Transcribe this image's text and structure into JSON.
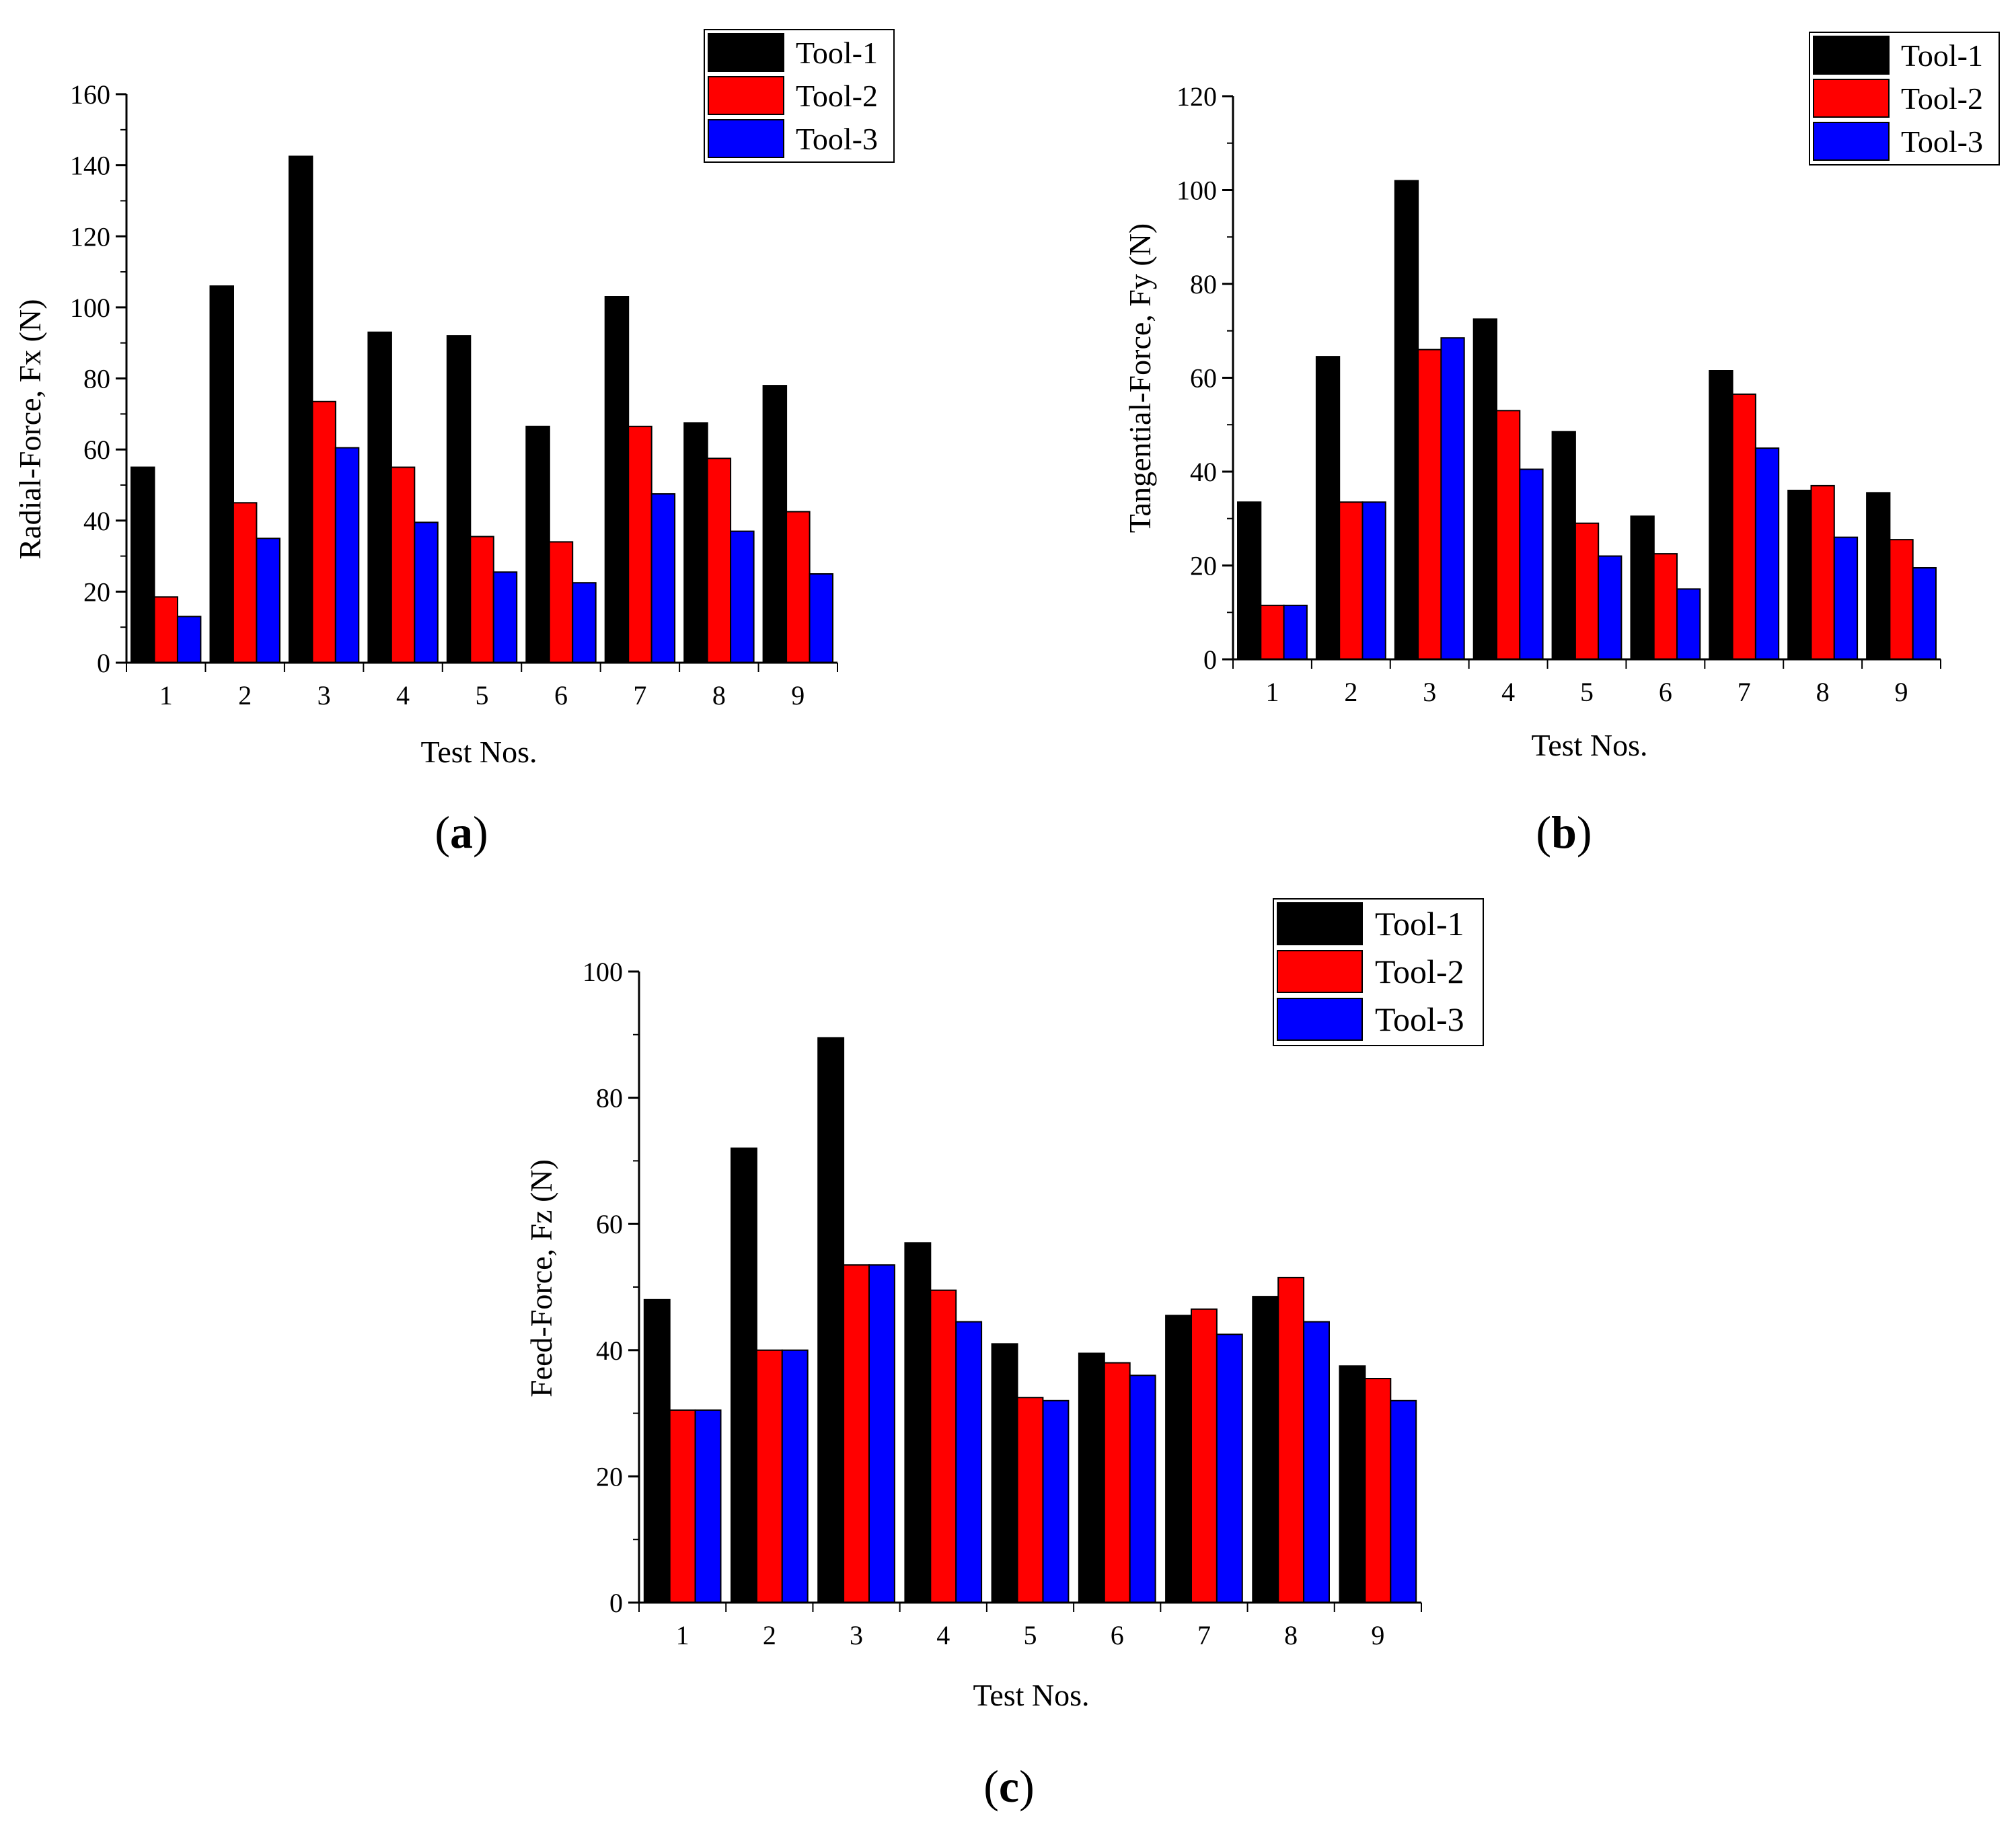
{
  "chart_data": [
    {
      "type": "bar",
      "panel": "(a)",
      "panel_letter": "a",
      "title": "",
      "xlabel": "Test Nos.",
      "ylabel": "Radial-Force, Fx (N)",
      "ylim": [
        0,
        160
      ],
      "yticks": [
        0,
        20,
        40,
        60,
        80,
        100,
        120,
        140,
        160
      ],
      "categories": [
        "1",
        "2",
        "3",
        "4",
        "5",
        "6",
        "7",
        "8",
        "9"
      ],
      "legend_position": "top-right",
      "series": [
        {
          "name": "Tool-1",
          "color": "#000000",
          "values": [
            55,
            106,
            142.5,
            93,
            92,
            66.5,
            103,
            67.5,
            78
          ]
        },
        {
          "name": "Tool-2",
          "color": "#ff0000",
          "values": [
            18.5,
            45,
            73.5,
            55,
            35.5,
            34,
            66.5,
            57.5,
            42.5
          ]
        },
        {
          "name": "Tool-3",
          "color": "#0000ff",
          "values": [
            13,
            35,
            60.5,
            39.5,
            25.5,
            22.5,
            47.5,
            37,
            25
          ]
        }
      ]
    },
    {
      "type": "bar",
      "panel": "(b)",
      "panel_letter": "b",
      "title": "",
      "xlabel": "Test Nos.",
      "ylabel": "Tangential-Force, Fy (N)",
      "ylim": [
        0,
        120
      ],
      "yticks": [
        0,
        20,
        40,
        60,
        80,
        100,
        120
      ],
      "categories": [
        "1",
        "2",
        "3",
        "4",
        "5",
        "6",
        "7",
        "8",
        "9"
      ],
      "legend_position": "top-right",
      "series": [
        {
          "name": "Tool-1",
          "color": "#000000",
          "values": [
            33.5,
            64.5,
            102,
            72.5,
            48.5,
            30.5,
            61.5,
            36,
            35.5
          ]
        },
        {
          "name": "Tool-2",
          "color": "#ff0000",
          "values": [
            11.5,
            33.5,
            66,
            53,
            29,
            22.5,
            56.5,
            37,
            25.5
          ]
        },
        {
          "name": "Tool-3",
          "color": "#0000ff",
          "values": [
            11.5,
            33.5,
            68.5,
            40.5,
            22,
            15,
            45,
            26,
            19.5
          ]
        }
      ]
    },
    {
      "type": "bar",
      "panel": "(c)",
      "panel_letter": "c",
      "title": "",
      "xlabel": "Test Nos.",
      "ylabel": "Feed-Force, Fz (N)",
      "ylim": [
        0,
        100
      ],
      "yticks": [
        0,
        20,
        40,
        60,
        80,
        100
      ],
      "categories": [
        "1",
        "2",
        "3",
        "4",
        "5",
        "6",
        "7",
        "8",
        "9"
      ],
      "legend_position": "top-right",
      "series": [
        {
          "name": "Tool-1",
          "color": "#000000",
          "values": [
            48,
            72,
            89.5,
            57,
            41,
            39.5,
            45.5,
            48.5,
            37.5
          ]
        },
        {
          "name": "Tool-2",
          "color": "#ff0000",
          "values": [
            30.5,
            40,
            53.5,
            49.5,
            32.5,
            38,
            46.5,
            51.5,
            35.5
          ]
        },
        {
          "name": "Tool-3",
          "color": "#0000ff",
          "values": [
            30.5,
            40,
            53.5,
            44.5,
            32,
            36,
            42.5,
            44.5,
            32
          ]
        }
      ]
    }
  ]
}
